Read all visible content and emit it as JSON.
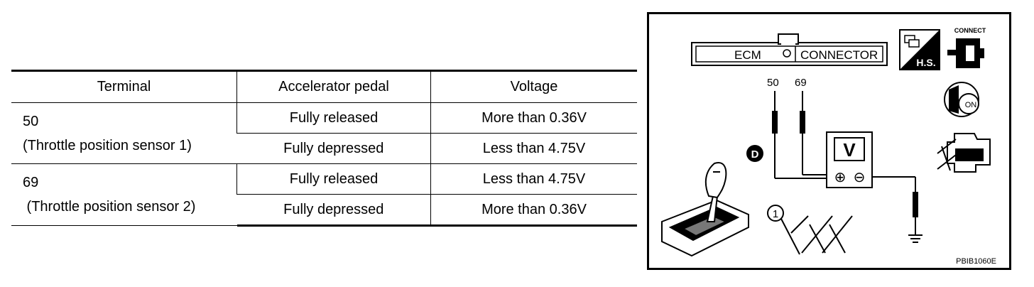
{
  "table": {
    "headers": [
      "Terminal",
      "Accelerator pedal",
      "Voltage"
    ],
    "groups": [
      {
        "terminal_number": "50",
        "terminal_name": "(Throttle position sensor 1)",
        "rows": [
          {
            "pedal": "Fully released",
            "voltage": "More than 0.36V"
          },
          {
            "pedal": "Fully depressed",
            "voltage": "Less than 4.75V"
          }
        ]
      },
      {
        "terminal_number": "69",
        "terminal_name": " (Throttle position sensor 2)",
        "rows": [
          {
            "pedal": "Fully released",
            "voltage": "Less than 4.75V"
          },
          {
            "pedal": "Fully depressed",
            "voltage": "More than 0.36V"
          }
        ]
      }
    ]
  },
  "diagram": {
    "connector_label_left": "ECM",
    "connector_label_right": "CONNECTOR",
    "pin_a": "50",
    "pin_b": "69",
    "meter_letter": "V",
    "probe_plus": "⊕",
    "probe_minus": "⊖",
    "marker_d": "D",
    "marker_1": "1",
    "hs_label": "H.S.",
    "connect_label": "CONNECT",
    "on_label": "ON",
    "figure_code": "PBIB1060E"
  }
}
